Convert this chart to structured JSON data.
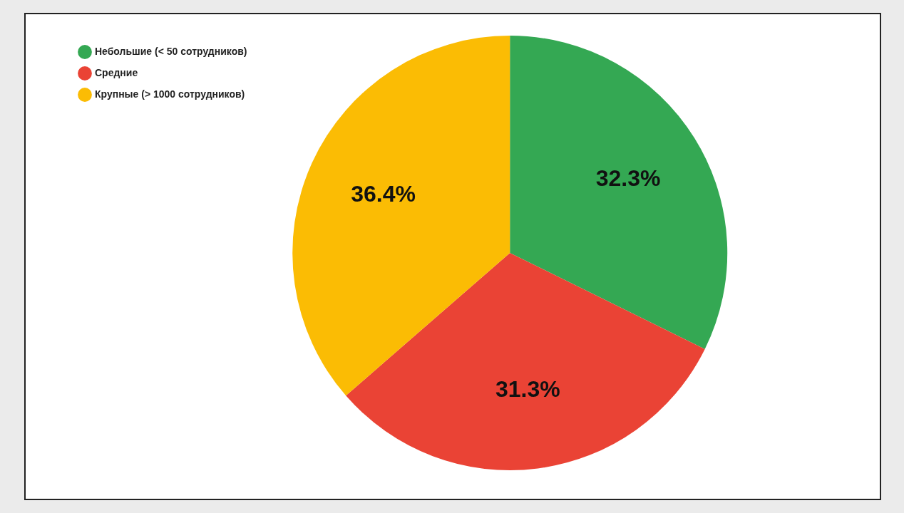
{
  "chart_data": {
    "type": "pie",
    "categories": [
      "Небольшие (< 50 сотрудников)",
      "Средние",
      "Крупные (> 1000 сотрудников)"
    ],
    "values": [
      32.3,
      31.3,
      36.4
    ],
    "colors": [
      "#34a853",
      "#ea4335",
      "#fbbc04"
    ],
    "value_labels": [
      "32.3%",
      "31.3%",
      "36.4%"
    ],
    "legend": "top left"
  }
}
